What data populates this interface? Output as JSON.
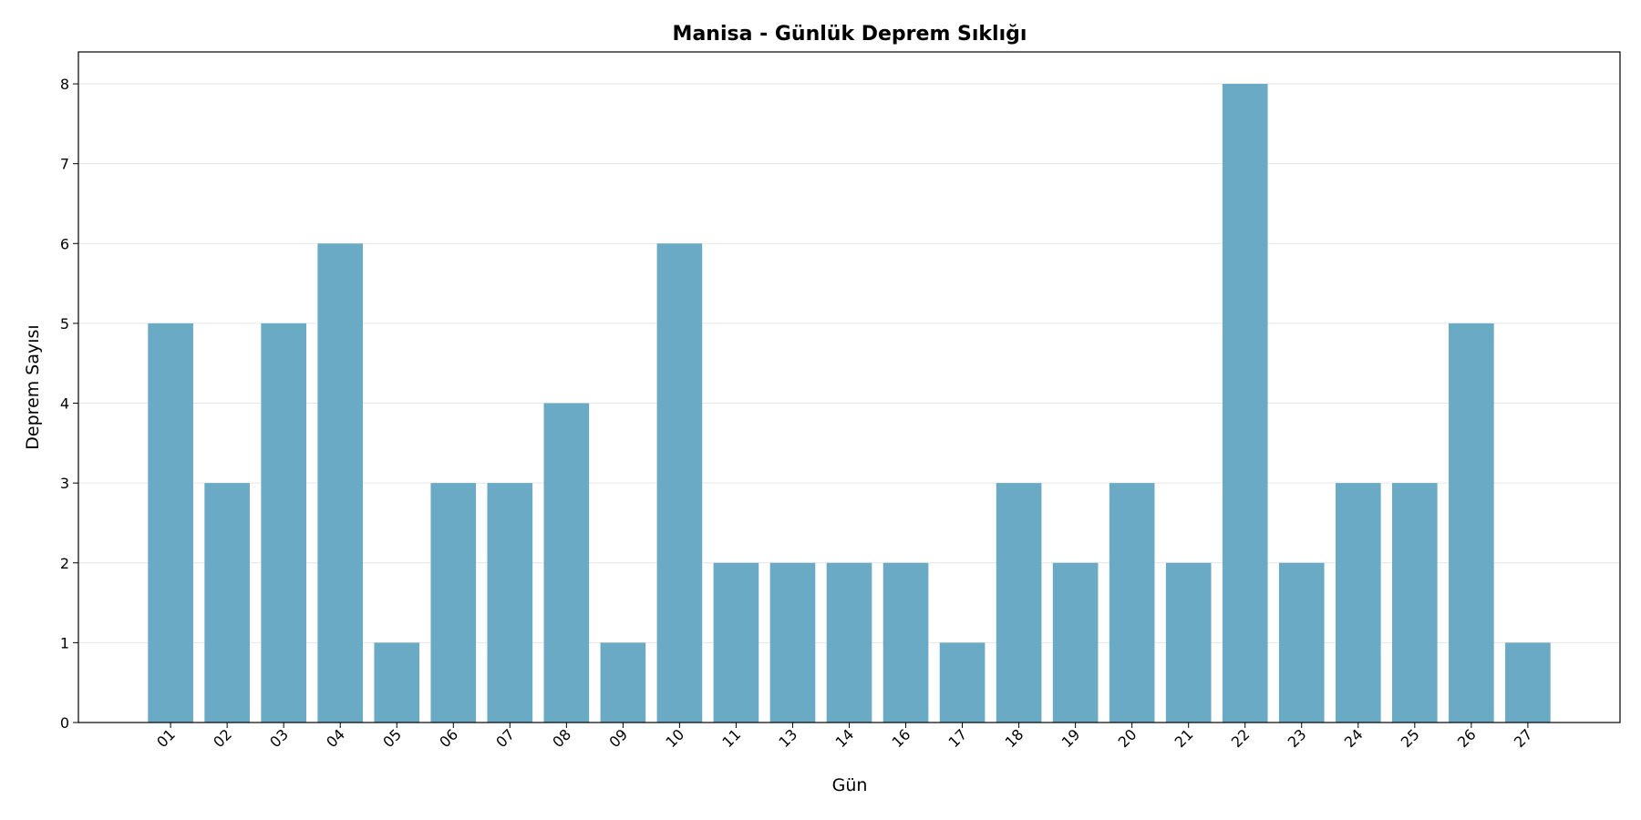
{
  "chart_data": {
    "type": "bar",
    "title": "Manisa - Günlük Deprem Sıklığı",
    "x_label": "Gün",
    "y_label": "Deprem Sayısı",
    "categories": [
      "01",
      "02",
      "03",
      "04",
      "05",
      "06",
      "07",
      "08",
      "09",
      "10",
      "11",
      "13",
      "14",
      "16",
      "17",
      "18",
      "19",
      "20",
      "21",
      "22",
      "23",
      "24",
      "25",
      "26",
      "27"
    ],
    "values": [
      5,
      3,
      5,
      6,
      1,
      3,
      3,
      4,
      1,
      6,
      2,
      2,
      2,
      2,
      1,
      3,
      2,
      3,
      2,
      8,
      2,
      3,
      3,
      5,
      1
    ],
    "color": "#6aaac5",
    "ylim": [
      0,
      8.4
    ],
    "yticks": [
      0,
      1,
      2,
      3,
      4,
      5,
      6,
      7,
      8
    ],
    "grid": true
  }
}
